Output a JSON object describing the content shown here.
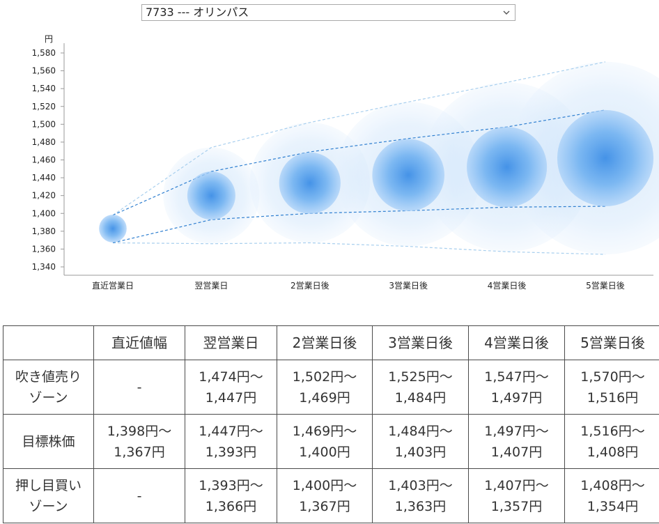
{
  "selector": {
    "value": "7733 --- オリンパス"
  },
  "chart_data": {
    "type": "scatter",
    "unit_label": "円",
    "ylim": [
      1340,
      1580
    ],
    "yticks": [
      1340,
      1360,
      1380,
      1400,
      1420,
      1440,
      1460,
      1480,
      1500,
      1520,
      1540,
      1560,
      1580
    ],
    "y_tick_labels": [
      "1,340",
      "1,360",
      "1,380",
      "1,400",
      "1,420",
      "1,440",
      "1,460",
      "1,480",
      "1,500",
      "1,520",
      "1,540",
      "1,560",
      "1,580"
    ],
    "categories": [
      "直近営業日",
      "翌営業日",
      "2営業日後",
      "3営業日後",
      "4営業日後",
      "5営業日後"
    ],
    "center": [
      1383,
      1420,
      1434,
      1443,
      1452,
      1462
    ],
    "target_high": [
      1398,
      1447,
      1469,
      1484,
      1497,
      1516
    ],
    "target_low": [
      1367,
      1393,
      1400,
      1403,
      1407,
      1408
    ],
    "outer_high": [
      1398,
      1474,
      1502,
      1525,
      1547,
      1570
    ],
    "outer_low": [
      1367,
      1366,
      1367,
      1363,
      1357,
      1354
    ],
    "colors": {
      "bubble_core": "#3d8ee6",
      "bubble_halo": "#bcd9f7",
      "trend_line": "#2f7fd0",
      "band_line": "#a8cfee",
      "axis": "#999999"
    }
  },
  "table": {
    "headers": [
      "",
      "直近値幅",
      "翌営業日",
      "2営業日後",
      "3営業日後",
      "4営業日後",
      "5営業日後"
    ],
    "rows": [
      {
        "label": [
          "吹き値売り",
          "ゾーン"
        ],
        "cells": [
          [
            "-"
          ],
          [
            "1,474円～",
            "1,447円"
          ],
          [
            "1,502円～",
            "1,469円"
          ],
          [
            "1,525円～",
            "1,484円"
          ],
          [
            "1,547円～",
            "1,497円"
          ],
          [
            "1,570円～",
            "1,516円"
          ]
        ]
      },
      {
        "label": [
          "目標株価"
        ],
        "cells": [
          [
            "1,398円～",
            "1,367円"
          ],
          [
            "1,447円～",
            "1,393円"
          ],
          [
            "1,469円～",
            "1,400円"
          ],
          [
            "1,484円～",
            "1,403円"
          ],
          [
            "1,497円～",
            "1,407円"
          ],
          [
            "1,516円～",
            "1,408円"
          ]
        ]
      },
      {
        "label": [
          "押し目買い",
          "ゾーン"
        ],
        "cells": [
          [
            "-"
          ],
          [
            "1,393円～",
            "1,366円"
          ],
          [
            "1,400円～",
            "1,367円"
          ],
          [
            "1,403円～",
            "1,363円"
          ],
          [
            "1,407円～",
            "1,357円"
          ],
          [
            "1,408円～",
            "1,354円"
          ]
        ]
      }
    ]
  }
}
